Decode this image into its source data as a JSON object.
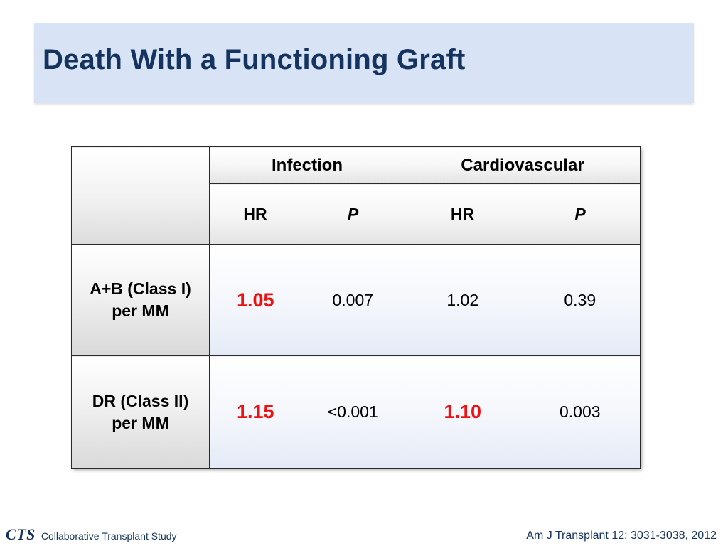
{
  "slide": {
    "title": "Death With a Functioning Graft"
  },
  "table": {
    "groups": [
      "Infection",
      "Cardiovascular"
    ],
    "subheaders": [
      "HR",
      "P",
      "HR",
      "P"
    ],
    "rows": [
      {
        "label_line1": "A+B (Class I)",
        "label_line2": "per MM",
        "cells": [
          "1.05",
          "0.007",
          "1.02",
          "0.39"
        ]
      },
      {
        "label_line1": "DR (Class II)",
        "label_line2": "per MM",
        "cells": [
          "1.15",
          "<0.001",
          "1.10",
          "0.003"
        ]
      }
    ]
  },
  "footer": {
    "logo_mark": "CTS",
    "logo_text": "Collaborative Transplant Study",
    "citation": "Am J Transplant 12: 3031-3038, 2012"
  },
  "colors": {
    "title_banner": "#d8e4f5",
    "title_text": "#14335e",
    "highlight_value": "#ee1111"
  }
}
